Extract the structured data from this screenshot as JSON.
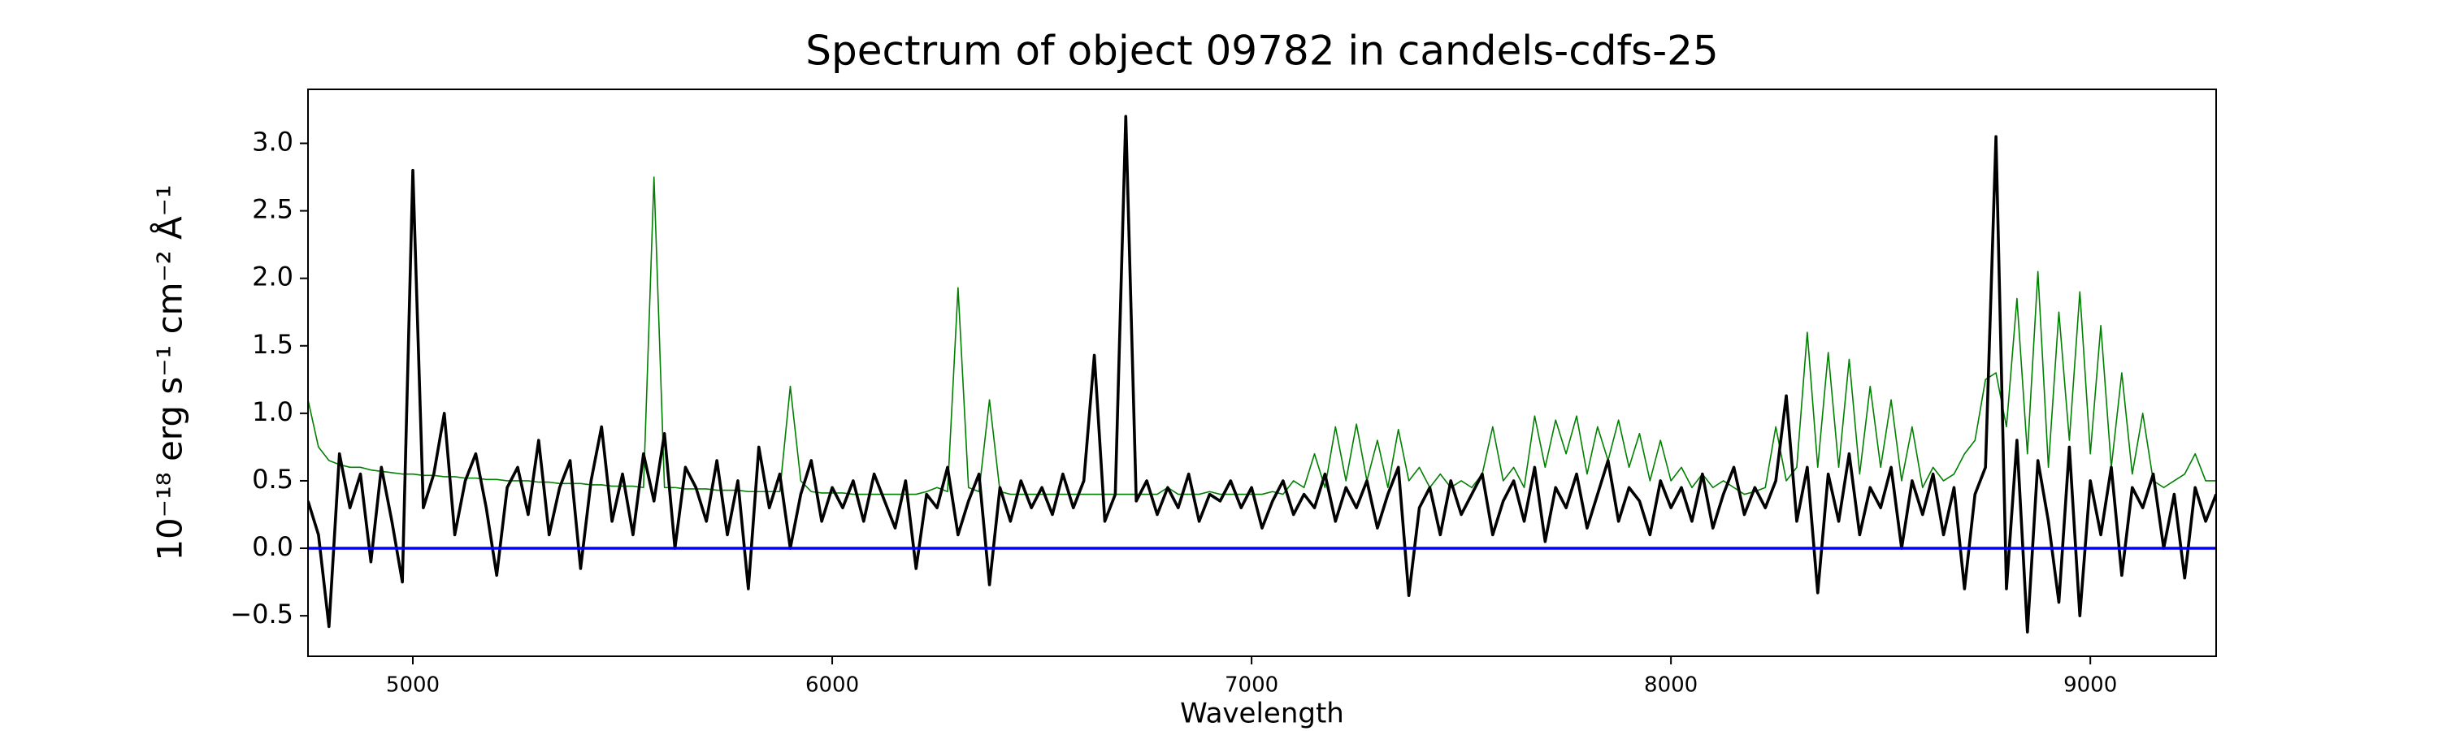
{
  "chart_data": {
    "type": "line",
    "title": "Spectrum of object 09782 in candels-cdfs-25",
    "xlabel": "Wavelength",
    "ylabel": "10⁻¹⁸ erg s⁻¹ cm⁻² Å⁻¹",
    "xlim": [
      4750,
      9300
    ],
    "ylim": [
      -0.8,
      3.4
    ],
    "xticks": [
      5000,
      6000,
      7000,
      8000,
      9000
    ],
    "yticks": [
      {
        "value": -0.5,
        "label": "−0.5"
      },
      {
        "value": 0,
        "label": "0.0"
      },
      0.5,
      {
        "value": 1,
        "label": "1.0"
      },
      1.5,
      {
        "value": 2,
        "label": "2.0"
      },
      2.5,
      {
        "value": 3,
        "label": "3.0"
      }
    ],
    "hlines": [
      {
        "y": 0,
        "color": "#0000ff"
      }
    ],
    "x": [
      4750,
      4775,
      4800,
      4825,
      4850,
      4875,
      4900,
      4925,
      4950,
      4975,
      5000,
      5025,
      5050,
      5075,
      5100,
      5125,
      5150,
      5175,
      5200,
      5225,
      5250,
      5275,
      5300,
      5325,
      5350,
      5375,
      5400,
      5425,
      5450,
      5475,
      5500,
      5525,
      5550,
      5575,
      5600,
      5625,
      5650,
      5675,
      5700,
      5725,
      5750,
      5775,
      5800,
      5825,
      5850,
      5875,
      5900,
      5925,
      5950,
      5975,
      6000,
      6025,
      6050,
      6075,
      6100,
      6125,
      6150,
      6175,
      6200,
      6225,
      6250,
      6275,
      6300,
      6325,
      6350,
      6375,
      6400,
      6425,
      6450,
      6475,
      6500,
      6525,
      6550,
      6575,
      6600,
      6625,
      6650,
      6675,
      6700,
      6725,
      6750,
      6775,
      6800,
      6825,
      6850,
      6875,
      6900,
      6925,
      6950,
      6975,
      7000,
      7025,
      7050,
      7075,
      7100,
      7125,
      7150,
      7175,
      7200,
      7225,
      7250,
      7275,
      7300,
      7325,
      7350,
      7375,
      7400,
      7425,
      7450,
      7475,
      7500,
      7525,
      7550,
      7575,
      7600,
      7625,
      7650,
      7675,
      7700,
      7725,
      7750,
      7775,
      7800,
      7825,
      7850,
      7875,
      7900,
      7925,
      7950,
      7975,
      8000,
      8025,
      8050,
      8075,
      8100,
      8125,
      8150,
      8175,
      8200,
      8225,
      8250,
      8275,
      8300,
      8325,
      8350,
      8375,
      8400,
      8425,
      8450,
      8475,
      8500,
      8525,
      8550,
      8575,
      8600,
      8625,
      8650,
      8675,
      8700,
      8725,
      8750,
      8775,
      8800,
      8825,
      8850,
      8875,
      8900,
      8925,
      8950,
      8975,
      9000,
      9025,
      9050,
      9075,
      9100,
      9125,
      9150,
      9175,
      9200,
      9225,
      9250,
      9275,
      9300
    ],
    "series": [
      {
        "color": "#008000",
        "width": 1.6,
        "values": [
          1.1,
          0.75,
          0.65,
          0.62,
          0.6,
          0.6,
          0.58,
          0.57,
          0.56,
          0.55,
          0.55,
          0.54,
          0.54,
          0.53,
          0.53,
          0.52,
          0.52,
          0.51,
          0.51,
          0.5,
          0.5,
          0.5,
          0.49,
          0.49,
          0.48,
          0.48,
          0.48,
          0.47,
          0.47,
          0.46,
          0.46,
          0.46,
          0.45,
          2.75,
          0.45,
          0.45,
          0.44,
          0.44,
          0.44,
          0.43,
          0.43,
          0.43,
          0.42,
          0.42,
          0.42,
          0.42,
          1.2,
          0.5,
          0.42,
          0.41,
          0.41,
          0.41,
          0.4,
          0.4,
          0.4,
          0.4,
          0.4,
          0.4,
          0.4,
          0.42,
          0.45,
          0.42,
          1.93,
          0.45,
          0.42,
          1.1,
          0.42,
          0.4,
          0.4,
          0.4,
          0.4,
          0.4,
          0.4,
          0.4,
          0.4,
          0.4,
          0.4,
          0.4,
          0.4,
          0.4,
          0.4,
          0.4,
          0.45,
          0.4,
          0.4,
          0.4,
          0.42,
          0.4,
          0.4,
          0.4,
          0.4,
          0.4,
          0.42,
          0.4,
          0.5,
          0.45,
          0.7,
          0.45,
          0.9,
          0.5,
          0.92,
          0.5,
          0.8,
          0.45,
          0.88,
          0.5,
          0.6,
          0.45,
          0.55,
          0.45,
          0.5,
          0.45,
          0.55,
          0.9,
          0.5,
          0.6,
          0.45,
          0.98,
          0.6,
          0.95,
          0.7,
          0.98,
          0.55,
          0.9,
          0.65,
          0.95,
          0.6,
          0.85,
          0.5,
          0.8,
          0.5,
          0.6,
          0.45,
          0.55,
          0.45,
          0.5,
          0.45,
          0.4,
          0.42,
          0.45,
          0.9,
          0.5,
          0.6,
          1.6,
          0.6,
          1.45,
          0.6,
          1.4,
          0.55,
          1.2,
          0.6,
          1.1,
          0.5,
          0.9,
          0.45,
          0.6,
          0.5,
          0.55,
          0.7,
          0.8,
          1.25,
          1.3,
          0.9,
          1.85,
          0.7,
          2.05,
          0.6,
          1.75,
          0.8,
          1.9,
          0.7,
          1.65,
          0.6,
          1.3,
          0.55,
          1.0,
          0.5,
          0.45,
          0.5,
          0.55,
          0.7,
          0.5,
          0.5
        ]
      },
      {
        "color": "#000000",
        "width": 3.6,
        "values": [
          0.35,
          0.1,
          -0.58,
          0.7,
          0.3,
          0.55,
          -0.1,
          0.6,
          0.2,
          -0.25,
          2.8,
          0.3,
          0.55,
          1.0,
          0.1,
          0.5,
          0.7,
          0.3,
          -0.2,
          0.45,
          0.6,
          0.25,
          0.8,
          0.1,
          0.45,
          0.65,
          -0.15,
          0.5,
          0.9,
          0.2,
          0.55,
          0.1,
          0.7,
          0.35,
          0.85,
          0.0,
          0.6,
          0.45,
          0.2,
          0.65,
          0.1,
          0.5,
          -0.3,
          0.75,
          0.3,
          0.55,
          0.0,
          0.4,
          0.65,
          0.2,
          0.45,
          0.3,
          0.5,
          0.2,
          0.55,
          0.35,
          0.15,
          0.5,
          -0.15,
          0.4,
          0.3,
          0.6,
          0.1,
          0.35,
          0.55,
          -0.27,
          0.45,
          0.2,
          0.5,
          0.3,
          0.45,
          0.25,
          0.55,
          0.3,
          0.5,
          1.43,
          0.2,
          0.4,
          3.2,
          0.35,
          0.5,
          0.25,
          0.45,
          0.3,
          0.55,
          0.2,
          0.4,
          0.35,
          0.5,
          0.3,
          0.45,
          0.15,
          0.35,
          0.5,
          0.25,
          0.4,
          0.3,
          0.55,
          0.2,
          0.45,
          0.3,
          0.5,
          0.15,
          0.4,
          0.6,
          -0.35,
          0.3,
          0.45,
          0.1,
          0.5,
          0.25,
          0.4,
          0.55,
          0.1,
          0.35,
          0.5,
          0.2,
          0.6,
          0.05,
          0.45,
          0.3,
          0.55,
          0.15,
          0.4,
          0.65,
          0.2,
          0.45,
          0.35,
          0.1,
          0.5,
          0.3,
          0.45,
          0.2,
          0.55,
          0.15,
          0.4,
          0.6,
          0.25,
          0.45,
          0.3,
          0.5,
          1.13,
          0.2,
          0.6,
          -0.33,
          0.55,
          0.2,
          0.7,
          0.1,
          0.45,
          0.3,
          0.6,
          0.0,
          0.5,
          0.25,
          0.55,
          0.1,
          0.45,
          -0.3,
          0.4,
          0.6,
          3.05,
          -0.3,
          0.8,
          -0.62,
          0.65,
          0.2,
          -0.4,
          0.75,
          -0.5,
          0.5,
          0.1,
          0.6,
          -0.2,
          0.45,
          0.3,
          0.55,
          0.0,
          0.4,
          -0.22,
          0.45,
          0.2,
          0.4
        ]
      }
    ]
  }
}
